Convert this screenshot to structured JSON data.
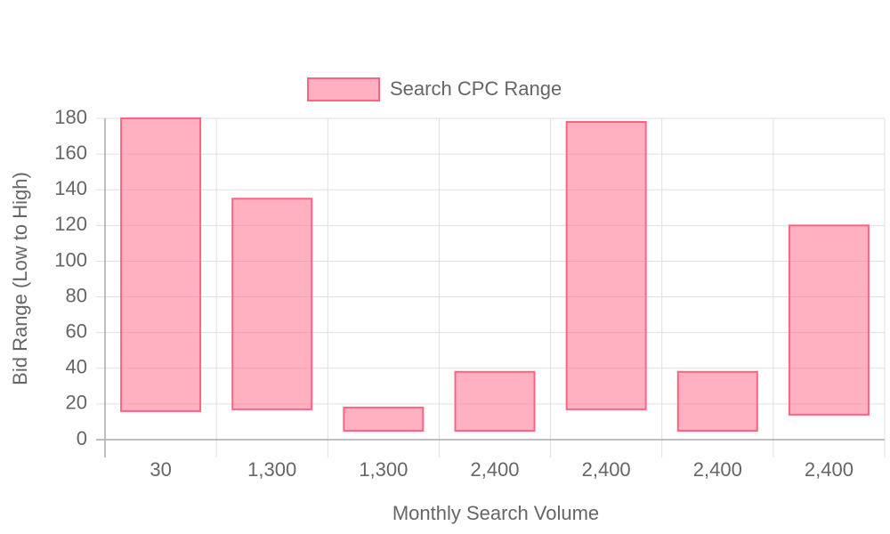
{
  "chart_data": {
    "type": "floating-bar",
    "categories": [
      "30",
      "1,300",
      "1,300",
      "2,400",
      "2,400",
      "2,400",
      "2,400"
    ],
    "series": [
      {
        "name": "Search CPC Range",
        "color": "#ff6384",
        "values": [
          [
            16,
            180
          ],
          [
            17,
            135
          ],
          [
            5,
            18
          ],
          [
            5,
            38
          ],
          [
            17,
            178
          ],
          [
            5,
            38
          ],
          [
            14,
            120
          ]
        ]
      }
    ],
    "xlabel": "Monthly Search Volume",
    "ylabel": "Bid Range (Low to High)",
    "ylim": [
      0,
      180
    ],
    "yticks": [
      0,
      20,
      40,
      60,
      80,
      100,
      120,
      140,
      160,
      180
    ],
    "grid": true,
    "legend": "top"
  }
}
